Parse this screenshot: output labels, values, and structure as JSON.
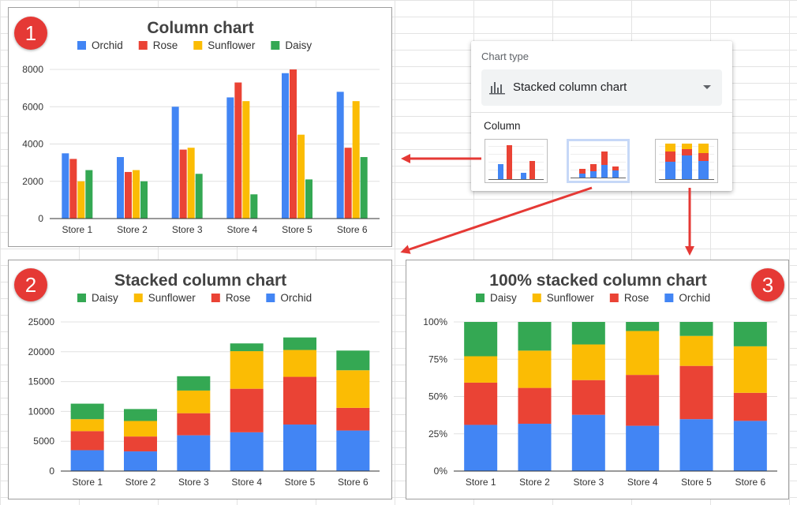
{
  "colors": {
    "orchid": "#4285f4",
    "rose": "#ea4335",
    "sunflower": "#fbbc04",
    "daisy": "#34a853",
    "badge": "#e53935",
    "arrow": "#e53935",
    "grid": "#e0e0e0",
    "baseline": "#333333"
  },
  "badges": [
    "1",
    "2",
    "3"
  ],
  "chart_type_panel": {
    "label": "Chart type",
    "selected": "Stacked column chart",
    "selected_icon": "bar-chart-icon",
    "caret_icon": "caret-down-icon",
    "section": "Column",
    "options": [
      "column-chart-thumbnail",
      "stacked-column-chart-thumbnail",
      "100-percent-stacked-column-chart-thumbnail"
    ]
  },
  "chart_data": [
    {
      "type": "bar",
      "title": "Column chart",
      "categories": [
        "Store 1",
        "Store 2",
        "Store 3",
        "Store 4",
        "Store 5",
        "Store 6"
      ],
      "series": [
        {
          "name": "Orchid",
          "values": [
            3500,
            3300,
            6000,
            6500,
            7800,
            6800
          ]
        },
        {
          "name": "Rose",
          "values": [
            3200,
            2500,
            3700,
            7300,
            8000,
            3800
          ]
        },
        {
          "name": "Sunflower",
          "values": [
            2000,
            2600,
            3800,
            6300,
            4500,
            6300
          ]
        },
        {
          "name": "Daisy",
          "values": [
            2600,
            2000,
            2400,
            1300,
            2100,
            3300
          ]
        }
      ],
      "yticks": [
        "0",
        "2000",
        "4000",
        "6000",
        "8000"
      ],
      "ylim": [
        0,
        8000
      ],
      "legend_position": "top",
      "grid": true
    },
    {
      "type": "bar",
      "stacked": true,
      "title": "Stacked column chart",
      "categories": [
        "Store 1",
        "Store 2",
        "Store 3",
        "Store 4",
        "Store 5",
        "Store 6"
      ],
      "series": [
        {
          "name": "Orchid",
          "values": [
            3500,
            3300,
            6000,
            6500,
            7800,
            6800
          ]
        },
        {
          "name": "Rose",
          "values": [
            3200,
            2500,
            3700,
            7300,
            8000,
            3800
          ]
        },
        {
          "name": "Sunflower",
          "values": [
            2000,
            2600,
            3800,
            6300,
            4500,
            6300
          ]
        },
        {
          "name": "Daisy",
          "values": [
            2600,
            2000,
            2400,
            1300,
            2100,
            3300
          ]
        }
      ],
      "legend_order": [
        "Daisy",
        "Sunflower",
        "Rose",
        "Orchid"
      ],
      "yticks": [
        "0",
        "5000",
        "10000",
        "15000",
        "20000",
        "25000"
      ],
      "ylim": [
        0,
        25000
      ],
      "legend_position": "top",
      "grid": true
    },
    {
      "type": "bar",
      "stacked": "percent",
      "title": "100% stacked column chart",
      "categories": [
        "Store 1",
        "Store 2",
        "Store 3",
        "Store 4",
        "Store 5",
        "Store 6"
      ],
      "series": [
        {
          "name": "Orchid",
          "values": [
            3500,
            3300,
            6000,
            6500,
            7800,
            6800
          ]
        },
        {
          "name": "Rose",
          "values": [
            3200,
            2500,
            3700,
            7300,
            8000,
            3800
          ]
        },
        {
          "name": "Sunflower",
          "values": [
            2000,
            2600,
            3800,
            6300,
            4500,
            6300
          ]
        },
        {
          "name": "Daisy",
          "values": [
            2600,
            2000,
            2400,
            1300,
            2100,
            3300
          ]
        }
      ],
      "legend_order": [
        "Daisy",
        "Sunflower",
        "Rose",
        "Orchid"
      ],
      "yticks": [
        "0%",
        "25%",
        "50%",
        "75%",
        "100%"
      ],
      "ylim": [
        0,
        1
      ],
      "legend_position": "top",
      "grid": true
    }
  ]
}
